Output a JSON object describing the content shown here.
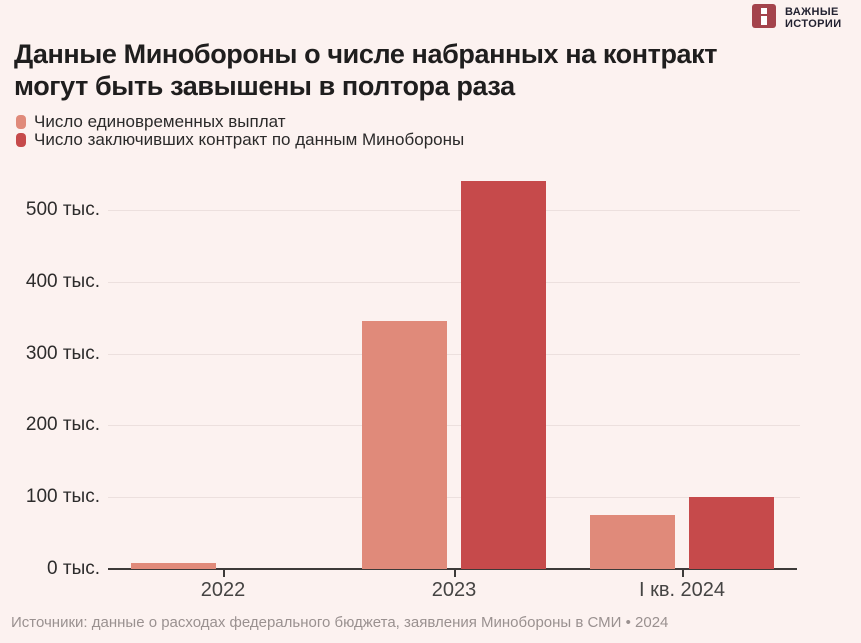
{
  "brand": {
    "line1": "ВАЖНЫЕ",
    "line2": "ИСТОРИИ",
    "logo_color": "#a4434c",
    "logo_glyph": "i"
  },
  "header": {
    "title_line1": "Данные Минобороны о числе набранных на контракт",
    "title_line2": "могут быть завышены в полтора раза"
  },
  "legend": [
    {
      "label": "Число единовременных выплат",
      "color": "#e08a7a"
    },
    {
      "label": "Число заключивших контракт по данным Минобороны",
      "color": "#c64a4b"
    }
  ],
  "chart_data": {
    "type": "bar",
    "title": "Данные Минобороны о числе набранных на контракт могут быть завышены в полтора раза",
    "categories": [
      "2022",
      "2023",
      "I кв. 2024"
    ],
    "series": [
      {
        "name": "Число единовременных выплат",
        "color": "#e08a7a",
        "values": [
          8,
          345,
          75
        ]
      },
      {
        "name": "Число заключивших контракт по данным Минобороны",
        "color": "#c64a4b",
        "values": [
          null,
          540,
          100
        ]
      }
    ],
    "unit": "тыс.",
    "ylim": [
      0,
      560
    ],
    "yticks": [
      {
        "value": 500,
        "label": "500 тыс."
      },
      {
        "value": 400,
        "label": "400 тыс."
      },
      {
        "value": 300,
        "label": "300 тыс."
      },
      {
        "value": 200,
        "label": "200 тыс."
      },
      {
        "value": 100,
        "label": "100 тыс."
      },
      {
        "value": 0,
        "label": "0 тыс."
      }
    ],
    "grid": true,
    "legend_position": "top-left"
  },
  "footer": {
    "source": "Источники: данные о расходах федерального бюджета, заявления Минобороны в СМИ • 2024"
  }
}
